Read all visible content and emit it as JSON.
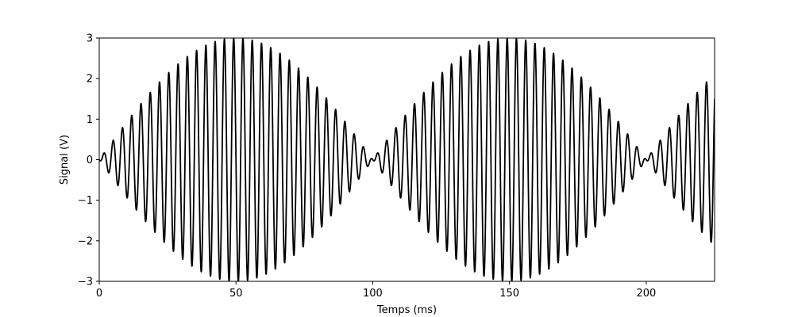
{
  "chart_data": {
    "type": "line",
    "title": "",
    "xlabel": "Temps (ms)",
    "ylabel": "Signal (V)",
    "xlim": [
      0,
      225
    ],
    "ylim": [
      -3,
      3
    ],
    "x_ticks": [
      0,
      50,
      100,
      150,
      200
    ],
    "y_ticks": [
      -3,
      -2,
      -1,
      0,
      1,
      2,
      3
    ],
    "x_tick_labels": [
      "0",
      "50",
      "100",
      "150",
      "200"
    ],
    "y_tick_labels": [
      "−3",
      "−2",
      "−1",
      "0",
      "1",
      "2",
      "3"
    ],
    "grid": false,
    "legend": "none",
    "series": [
      {
        "signal": {
          "form": "beat",
          "components": [
            {
              "amplitude": 1.5,
              "frequency_hz": 290,
              "phase_rad": 0
            },
            {
              "amplitude": 1.5,
              "frequency_hz": 300,
              "phase_rad": 3.14159
            }
          ],
          "x_unit": "ms",
          "y_unit": "V"
        },
        "color": "#000000"
      }
    ]
  }
}
